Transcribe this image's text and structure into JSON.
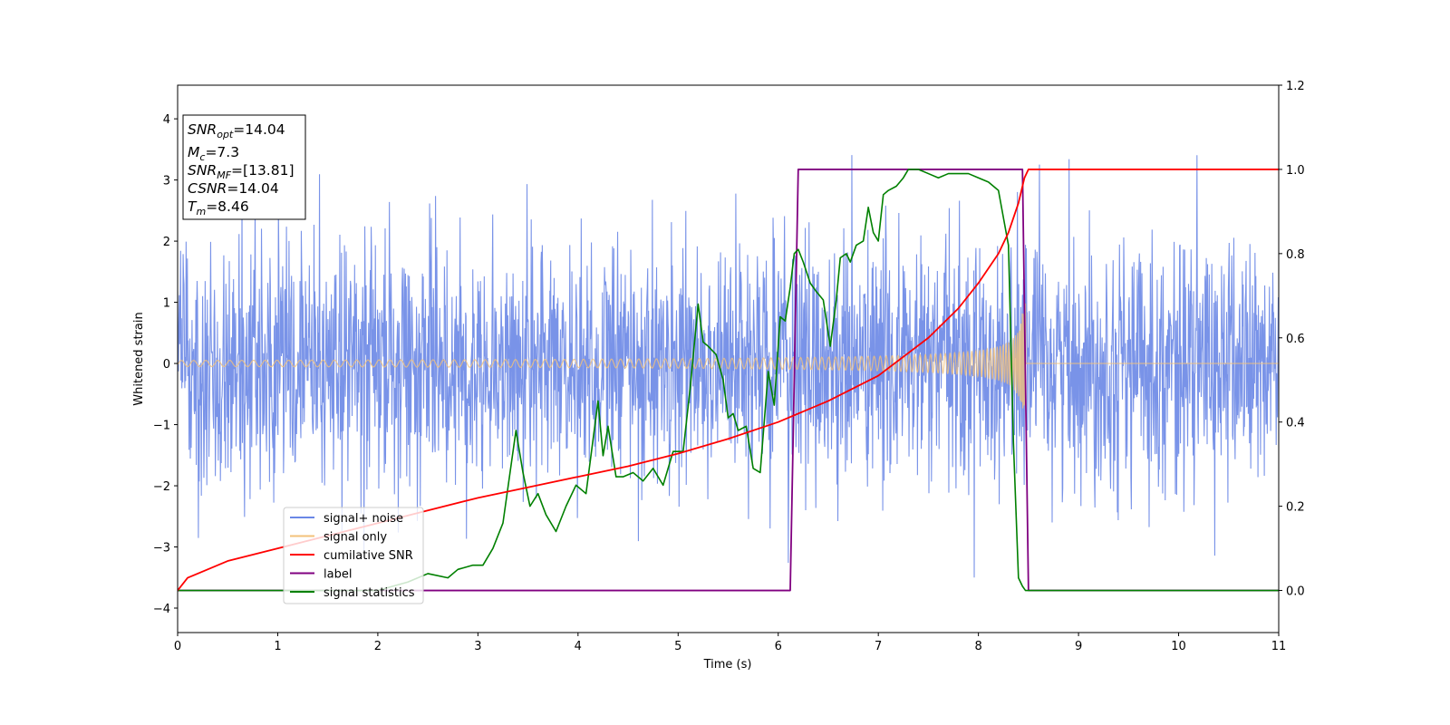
{
  "chart_data": {
    "type": "line",
    "xlabel": "Time (s)",
    "ylabel": "Whitened strain",
    "xlim": [
      0,
      11
    ],
    "ylim_left": [
      -4.4,
      4.55
    ],
    "ylim_right": [
      -0.1,
      1.2
    ],
    "x_ticks": [
      "0",
      "1",
      "2",
      "3",
      "4",
      "5",
      "6",
      "7",
      "8",
      "9",
      "10",
      "11"
    ],
    "y_left_ticks": [
      "−4",
      "−3",
      "−2",
      "−1",
      "0",
      "1",
      "2",
      "3",
      "4"
    ],
    "y_right_ticks": [
      "0.0",
      "0.2",
      "0.4",
      "0.6",
      "0.8",
      "1.0",
      "1.2"
    ],
    "legend_position": "lower-left",
    "legend": [
      {
        "label": "signal+ noise",
        "color": "#6a87e6"
      },
      {
        "label": "signal only",
        "color": "#f3c27a"
      },
      {
        "label": "cumilative SNR",
        "color": "#ff0000"
      },
      {
        "label": "label",
        "color": "#800080"
      },
      {
        "label": "signal statistics",
        "color": "#008000"
      }
    ],
    "info_box": {
      "snr_opt": {
        "base": "SNR",
        "sub": "opt",
        "value": "=14.04"
      },
      "mc": {
        "base": "M",
        "sub": "c",
        "value": "=7.3"
      },
      "snr_mf": {
        "base": "SNR",
        "sub": "MF",
        "value": "=[13.81]"
      },
      "csnr": {
        "base": "CSNR",
        "value": "=14.04"
      },
      "tm": {
        "base": "T",
        "sub": "m",
        "value": "=8.46"
      }
    },
    "series": [
      {
        "name": "signal+ noise",
        "axis": "left",
        "description_range": [
          0,
          11
        ],
        "amplitude_typical": 1.0,
        "extreme_min": -3.98,
        "extreme_max": 4.17
      },
      {
        "name": "signal only",
        "axis": "left",
        "start": 0,
        "merger_time": 8.47,
        "amplitude_start": 0.05,
        "amplitude_peak": 0.98
      },
      {
        "name": "cumilative SNR",
        "axis": "right",
        "x": [
          0,
          0.1,
          0.5,
          1,
          1.5,
          2,
          2.5,
          3,
          3.5,
          4,
          4.5,
          5,
          5.5,
          6,
          6.5,
          7,
          7.5,
          7.8,
          8.0,
          8.2,
          8.3,
          8.4,
          8.46,
          8.5,
          11
        ],
        "y": [
          0.0,
          0.03,
          0.07,
          0.1,
          0.13,
          0.16,
          0.19,
          0.22,
          0.245,
          0.27,
          0.295,
          0.325,
          0.36,
          0.4,
          0.45,
          0.51,
          0.6,
          0.67,
          0.73,
          0.8,
          0.85,
          0.92,
          0.98,
          1.0,
          1.0
        ]
      },
      {
        "name": "label",
        "axis": "right",
        "x": [
          0,
          6.12,
          6.2,
          8.44,
          8.5,
          11
        ],
        "y": [
          0,
          0,
          1,
          1,
          0,
          0
        ]
      },
      {
        "name": "signal statistics",
        "axis": "right",
        "x": [
          0,
          2.0,
          2.3,
          2.5,
          2.7,
          2.8,
          2.95,
          3.05,
          3.15,
          3.25,
          3.38,
          3.45,
          3.52,
          3.6,
          3.68,
          3.78,
          3.88,
          3.98,
          4.08,
          4.2,
          4.25,
          4.3,
          4.38,
          4.45,
          4.55,
          4.65,
          4.75,
          4.85,
          4.95,
          5.05,
          5.12,
          5.2,
          5.25,
          5.3,
          5.38,
          5.45,
          5.5,
          5.55,
          5.6,
          5.68,
          5.75,
          5.82,
          5.9,
          5.96,
          6.02,
          6.07,
          6.12,
          6.16,
          6.2,
          6.25,
          6.32,
          6.38,
          6.45,
          6.52,
          6.58,
          6.62,
          6.68,
          6.72,
          6.78,
          6.85,
          6.9,
          6.95,
          7.0,
          7.05,
          7.1,
          7.18,
          7.25,
          7.3,
          7.4,
          7.5,
          7.6,
          7.7,
          7.8,
          7.9,
          8.0,
          8.1,
          8.2,
          8.3,
          8.35,
          8.4,
          8.44,
          8.47,
          8.5,
          8.52,
          8.55,
          8.6,
          8.7,
          11
        ],
        "y": [
          0.0,
          0.0,
          0.02,
          0.04,
          0.03,
          0.05,
          0.06,
          0.06,
          0.1,
          0.16,
          0.38,
          0.28,
          0.2,
          0.23,
          0.18,
          0.14,
          0.2,
          0.25,
          0.23,
          0.45,
          0.32,
          0.39,
          0.27,
          0.27,
          0.28,
          0.26,
          0.29,
          0.25,
          0.33,
          0.33,
          0.48,
          0.68,
          0.59,
          0.58,
          0.56,
          0.5,
          0.41,
          0.42,
          0.38,
          0.39,
          0.29,
          0.28,
          0.52,
          0.44,
          0.65,
          0.64,
          0.72,
          0.8,
          0.81,
          0.78,
          0.73,
          0.71,
          0.69,
          0.58,
          0.69,
          0.79,
          0.8,
          0.78,
          0.82,
          0.83,
          0.91,
          0.85,
          0.83,
          0.94,
          0.95,
          0.96,
          0.98,
          1.0,
          1.0,
          0.99,
          0.98,
          0.99,
          0.99,
          0.99,
          0.98,
          0.97,
          0.95,
          0.82,
          0.35,
          0.03,
          0.01,
          0.0,
          0.0,
          0.0,
          0.0,
          0.0,
          0.0,
          0.0
        ]
      }
    ]
  }
}
